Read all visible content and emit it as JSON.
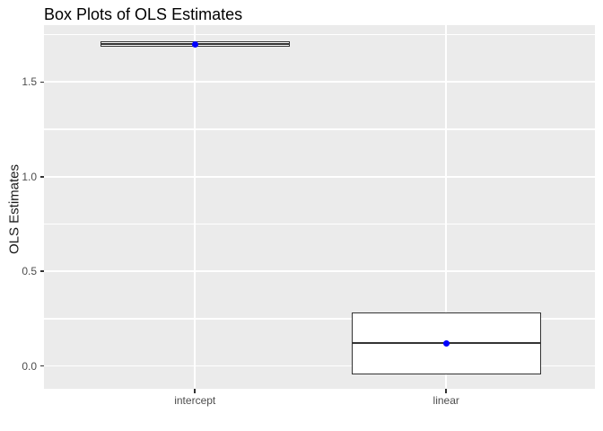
{
  "title": "Box Plots of OLS Estimates",
  "y_axis_title": "OLS Estimates",
  "chart_data": {
    "type": "boxplot",
    "title": "Box Plots of OLS Estimates",
    "xlabel": "",
    "ylabel": "OLS Estimates",
    "categories": [
      "intercept",
      "linear"
    ],
    "ylim": [
      -0.12,
      1.8
    ],
    "y_major_ticks": [
      0.0,
      0.5,
      1.0,
      1.5
    ],
    "y_tick_labels": [
      "0.0",
      "0.5",
      "1.0",
      "1.5"
    ],
    "y_minor_ticks": [
      0.25,
      0.75,
      1.25,
      1.75
    ],
    "grid": "on",
    "legend": "none",
    "boxes": [
      {
        "category": "intercept",
        "q1": 1.69,
        "median": 1.7,
        "q3": 1.71,
        "mean": 1.7,
        "whisker_low": 1.69,
        "whisker_high": 1.71
      },
      {
        "category": "linear",
        "q1": -0.04,
        "median": 0.12,
        "q3": 0.28,
        "mean": 0.12,
        "whisker_low": -0.04,
        "whisker_high": 0.28
      }
    ]
  },
  "colors": {
    "panel_bg": "#EBEBEB",
    "grid": "#FFFFFF",
    "box_border": "#333333",
    "box_fill": "#FFFFFF",
    "mean_point": "#0000FF",
    "tick_text": "#4D4D4D",
    "tick_mark": "#333333",
    "title_text": "#000000",
    "axis_title_text": "#1A1A1A"
  }
}
